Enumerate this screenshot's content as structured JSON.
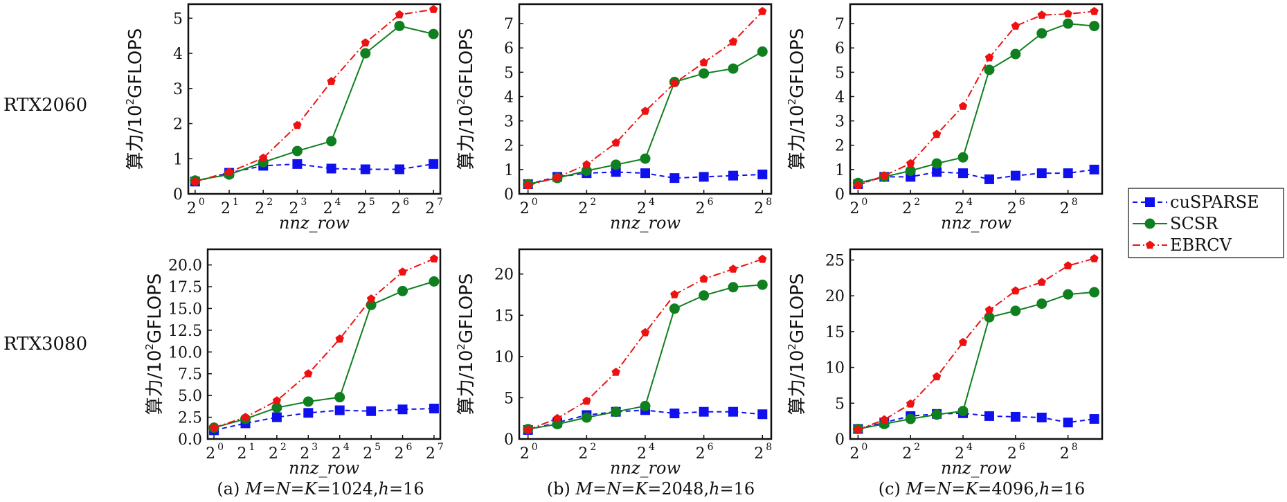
{
  "row_labels": [
    "RTX2060",
    "RTX3080"
  ],
  "captions": [
    {
      "prefix": "(a) ",
      "eq": "M=N=K=",
      "size": "1024",
      "sep": ",",
      "h": "h",
      "hval": "=16"
    },
    {
      "prefix": "(b) ",
      "eq": "M=N=K=",
      "size": "2048",
      "sep": ",",
      "h": "h",
      "hval": "=16"
    },
    {
      "prefix": "(c) ",
      "eq": "M=N=K=",
      "size": "4096",
      "sep": ",",
      "h": "h",
      "hval": "=16"
    }
  ],
  "legend": {
    "placement": "right",
    "entries": [
      "cuSPARSE",
      "SCSR",
      "EBRCV"
    ]
  },
  "colors": {
    "cuSPARSE": "#1010ee",
    "SCSR": "#0f7f1f",
    "EBRCV": "#ee1111"
  },
  "chart_data": [
    {
      "type": "line",
      "row": "RTX2060",
      "col": "a",
      "ylabel_main": "算力/10",
      "ylabel_sup": "2",
      "ylabel_tail": "GFLOPS",
      "xlabel": "nnz_row",
      "x": [
        0,
        1,
        2,
        3,
        4,
        5,
        6,
        7
      ],
      "xlim": [
        -0.2,
        7.2
      ],
      "ylim": [
        0,
        5.4
      ],
      "xticks": [
        0,
        1,
        2,
        3,
        4,
        5,
        6,
        7
      ],
      "yticks": [
        0,
        1,
        2,
        3,
        4,
        5
      ],
      "ytick_labels": [
        "0",
        "1",
        "2",
        "3",
        "4",
        "5"
      ],
      "series": [
        {
          "name": "cuSPARSE",
          "values": [
            0.35,
            0.6,
            0.8,
            0.85,
            0.72,
            0.7,
            0.7,
            0.85
          ]
        },
        {
          "name": "SCSR",
          "values": [
            0.38,
            0.55,
            0.9,
            1.22,
            1.5,
            4.0,
            4.78,
            4.55
          ]
        },
        {
          "name": "EBRCV",
          "values": [
            0.35,
            0.62,
            1.02,
            1.95,
            3.2,
            4.3,
            5.1,
            5.25
          ]
        }
      ]
    },
    {
      "type": "line",
      "row": "RTX2060",
      "col": "b",
      "ylabel_main": "算力/10",
      "ylabel_sup": "2",
      "ylabel_tail": "GFLOPS",
      "xlabel": "nnz_row",
      "x": [
        0,
        1,
        2,
        3,
        4,
        5,
        6,
        7,
        8
      ],
      "xlim": [
        -0.3,
        8.3
      ],
      "ylim": [
        0,
        7.8
      ],
      "xticks": [
        0,
        2,
        4,
        6,
        8
      ],
      "yticks": [
        0,
        1,
        2,
        3,
        4,
        5,
        6,
        7
      ],
      "ytick_labels": [
        "0",
        "1",
        "2",
        "3",
        "4",
        "5",
        "6",
        "7"
      ],
      "series": [
        {
          "name": "cuSPARSE",
          "values": [
            0.4,
            0.7,
            0.85,
            0.9,
            0.85,
            0.65,
            0.7,
            0.75,
            0.8
          ]
        },
        {
          "name": "SCSR",
          "values": [
            0.4,
            0.65,
            0.95,
            1.2,
            1.45,
            4.6,
            4.95,
            5.15,
            5.85
          ]
        },
        {
          "name": "EBRCV",
          "values": [
            0.35,
            0.68,
            1.2,
            2.1,
            3.4,
            4.55,
            5.4,
            6.25,
            7.5
          ]
        }
      ]
    },
    {
      "type": "line",
      "row": "RTX2060",
      "col": "c",
      "ylabel_main": "算力/10",
      "ylabel_sup": "2",
      "ylabel_tail": "GFLOPS",
      "xlabel": "nnz_row",
      "x": [
        0,
        1,
        2,
        3,
        4,
        5,
        6,
        7,
        8,
        9
      ],
      "xlim": [
        -0.3,
        9.3
      ],
      "ylim": [
        0,
        7.8
      ],
      "xticks": [
        0,
        2,
        4,
        6,
        8
      ],
      "yticks": [
        0,
        1,
        2,
        3,
        4,
        5,
        6,
        7
      ],
      "ytick_labels": [
        "0",
        "1",
        "2",
        "3",
        "4",
        "5",
        "6",
        "7"
      ],
      "series": [
        {
          "name": "cuSPARSE",
          "values": [
            0.4,
            0.7,
            0.7,
            0.9,
            0.85,
            0.6,
            0.75,
            0.85,
            0.85,
            1.0
          ]
        },
        {
          "name": "SCSR",
          "values": [
            0.45,
            0.7,
            0.95,
            1.25,
            1.5,
            5.1,
            5.75,
            6.6,
            7.0,
            6.9
          ]
        },
        {
          "name": "EBRCV",
          "values": [
            0.35,
            0.75,
            1.25,
            2.45,
            3.6,
            5.6,
            6.9,
            7.35,
            7.4,
            7.5
          ]
        }
      ]
    },
    {
      "type": "line",
      "row": "RTX3080",
      "col": "a",
      "ylabel_main": "算力/10",
      "ylabel_sup": "2",
      "ylabel_tail": "GFLOPS",
      "xlabel": "nnz_row",
      "x": [
        0,
        1,
        2,
        3,
        4,
        5,
        6,
        7
      ],
      "xlim": [
        -0.2,
        7.2
      ],
      "ylim": [
        0,
        21.8
      ],
      "xticks": [
        0,
        1,
        2,
        3,
        4,
        5,
        6,
        7
      ],
      "yticks": [
        0,
        2.5,
        5,
        7.5,
        10,
        12.5,
        15,
        17.5,
        20
      ],
      "ytick_labels": [
        "0.0",
        "2.5",
        "5.0",
        "7.5",
        "10.0",
        "12.5",
        "15.0",
        "17.5",
        "20.0"
      ],
      "series": [
        {
          "name": "cuSPARSE",
          "values": [
            1.0,
            1.8,
            2.5,
            3.0,
            3.3,
            3.2,
            3.4,
            3.5
          ]
        },
        {
          "name": "SCSR",
          "values": [
            1.3,
            2.3,
            3.6,
            4.3,
            4.8,
            15.4,
            17.0,
            18.1
          ]
        },
        {
          "name": "EBRCV",
          "values": [
            1.3,
            2.5,
            4.4,
            7.5,
            11.5,
            16.1,
            19.2,
            20.7
          ]
        }
      ]
    },
    {
      "type": "line",
      "row": "RTX3080",
      "col": "b",
      "ylabel_main": "算力/10",
      "ylabel_sup": "2",
      "ylabel_tail": "GFLOPS",
      "xlabel": "nnz_row",
      "x": [
        0,
        1,
        2,
        3,
        4,
        5,
        6,
        7,
        8
      ],
      "xlim": [
        -0.3,
        8.3
      ],
      "ylim": [
        0,
        23
      ],
      "xticks": [
        0,
        2,
        4,
        6,
        8
      ],
      "yticks": [
        0,
        5,
        10,
        15,
        20
      ],
      "ytick_labels": [
        "0",
        "5",
        "10",
        "15",
        "20"
      ],
      "series": [
        {
          "name": "cuSPARSE",
          "values": [
            1.1,
            2.0,
            2.9,
            3.3,
            3.5,
            3.1,
            3.3,
            3.3,
            3.0
          ]
        },
        {
          "name": "SCSR",
          "values": [
            1.2,
            1.8,
            2.6,
            3.3,
            4.0,
            15.8,
            17.4,
            18.4,
            18.7
          ]
        },
        {
          "name": "EBRCV",
          "values": [
            1.1,
            2.5,
            4.6,
            8.1,
            12.9,
            17.5,
            19.4,
            20.6,
            21.8
          ]
        }
      ]
    },
    {
      "type": "line",
      "row": "RTX3080",
      "col": "c",
      "ylabel_main": "算力/10",
      "ylabel_sup": "2",
      "ylabel_tail": "GFLOPS",
      "xlabel": "nnz_row",
      "x": [
        0,
        1,
        2,
        3,
        4,
        5,
        6,
        7,
        8,
        9
      ],
      "xlim": [
        -0.3,
        9.3
      ],
      "ylim": [
        0,
        26.5
      ],
      "xticks": [
        0,
        2,
        4,
        6,
        8
      ],
      "yticks": [
        0,
        5,
        10,
        15,
        20,
        25
      ],
      "ytick_labels": [
        "0",
        "5",
        "10",
        "15",
        "20",
        "25"
      ],
      "series": [
        {
          "name": "cuSPARSE",
          "values": [
            1.4,
            2.3,
            3.2,
            3.5,
            3.6,
            3.2,
            3.1,
            3.0,
            2.3,
            2.8
          ]
        },
        {
          "name": "SCSR",
          "values": [
            1.4,
            2.1,
            2.8,
            3.4,
            3.9,
            17.0,
            17.9,
            18.9,
            20.2,
            20.5
          ]
        },
        {
          "name": "EBRCV",
          "values": [
            1.3,
            2.7,
            4.9,
            8.7,
            13.5,
            18.0,
            20.7,
            21.9,
            24.2,
            25.2
          ]
        }
      ]
    }
  ]
}
